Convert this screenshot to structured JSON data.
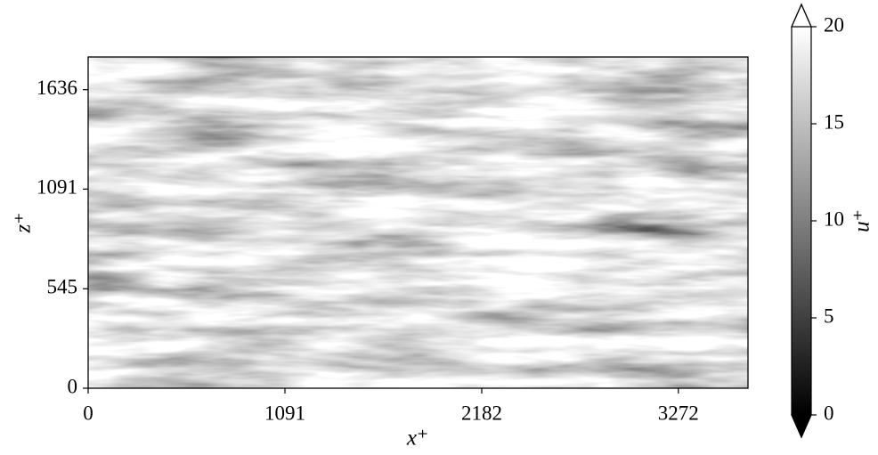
{
  "chart_data": {
    "type": "heatmap",
    "xlabel": "x⁺",
    "ylabel": "z⁺",
    "xlim": [
      0,
      3658
    ],
    "xticks": [
      0,
      1091,
      2182,
      3272
    ],
    "ylim": [
      0,
      1815
    ],
    "yticks": [
      0,
      545,
      1091,
      1636
    ],
    "colorbar": {
      "label": "u⁺",
      "colormap": "gray",
      "clim": [
        0,
        20
      ],
      "ticks": [
        0,
        5,
        10,
        15,
        20
      ],
      "extend": "both"
    }
  }
}
